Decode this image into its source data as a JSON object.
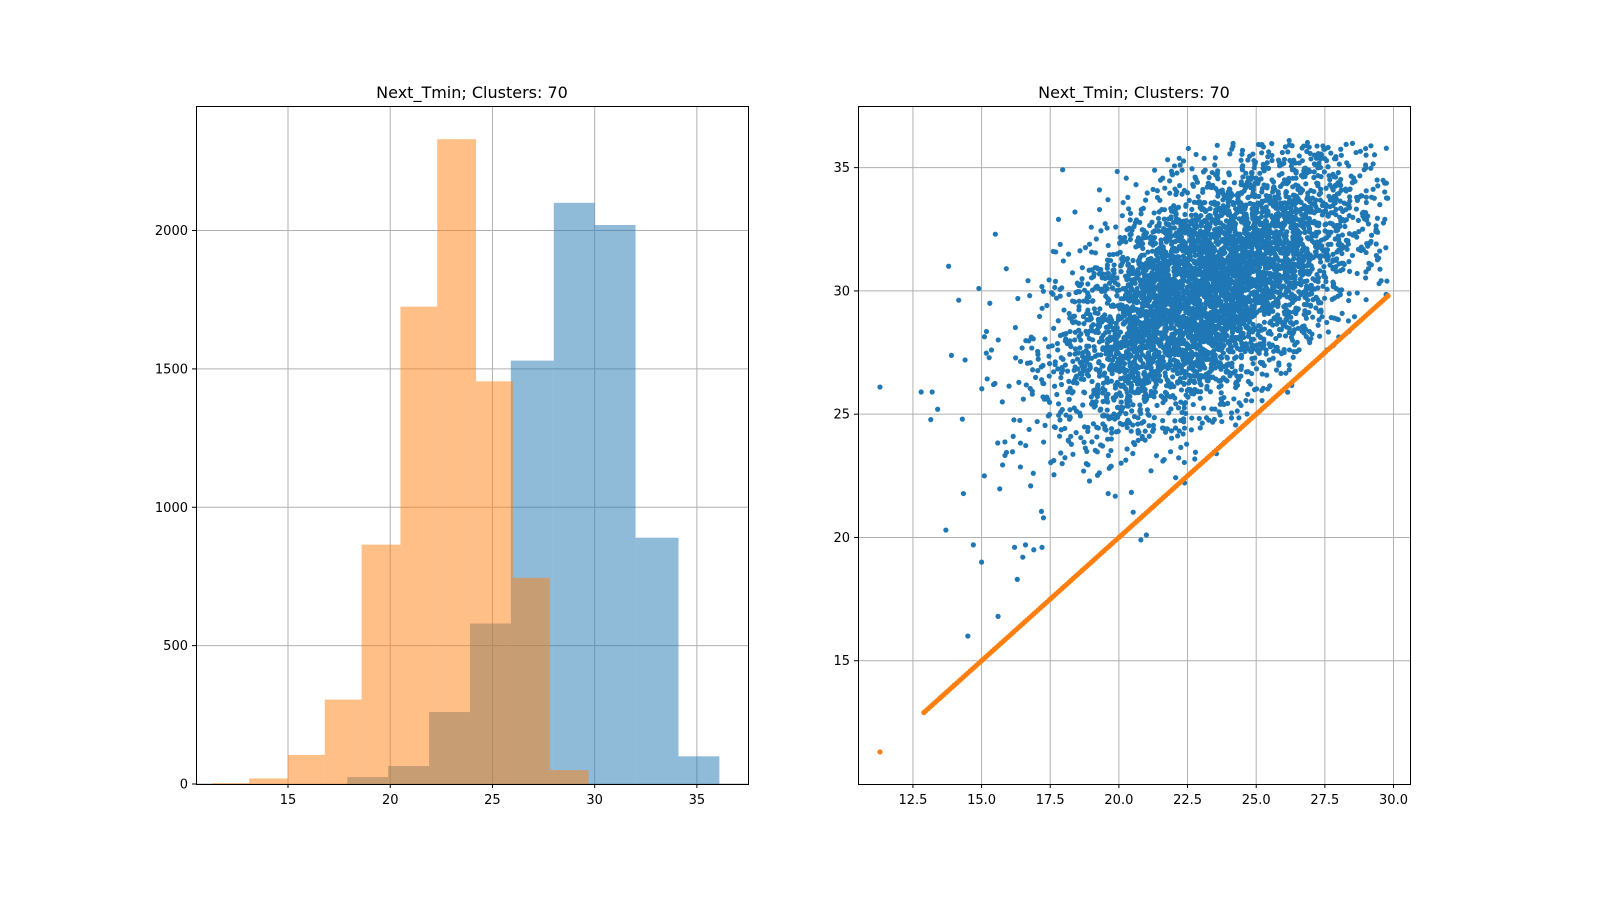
{
  "chart_data": [
    {
      "type": "bar",
      "subtype": "overlapping-histogram",
      "title": "Next_Tmin; Clusters: 70",
      "xlabel": "",
      "ylabel": "",
      "xlim": [
        10.5,
        37.5
      ],
      "ylim": [
        0,
        2450
      ],
      "xticks": [
        15,
        20,
        25,
        30,
        35
      ],
      "yticks": [
        0,
        500,
        1000,
        1500,
        2000
      ],
      "grid": true,
      "series": [
        {
          "color": "#1f77b4",
          "opacity": 0.5,
          "bins": [
            {
              "x0": 17.9,
              "x1": 19.9,
              "count": 25
            },
            {
              "x0": 19.9,
              "x1": 21.9,
              "count": 65
            },
            {
              "x0": 21.9,
              "x1": 23.9,
              "count": 260
            },
            {
              "x0": 23.9,
              "x1": 25.9,
              "count": 580
            },
            {
              "x0": 25.9,
              "x1": 28.0,
              "count": 1530
            },
            {
              "x0": 28.0,
              "x1": 30.0,
              "count": 2100
            },
            {
              "x0": 30.0,
              "x1": 32.0,
              "count": 2020
            },
            {
              "x0": 32.0,
              "x1": 34.1,
              "count": 890
            },
            {
              "x0": 34.1,
              "x1": 36.1,
              "count": 100
            }
          ]
        },
        {
          "color": "#ff7f0e",
          "opacity": 0.5,
          "bins": [
            {
              "x0": 11.3,
              "x1": 13.1,
              "count": 3
            },
            {
              "x0": 13.1,
              "x1": 15.0,
              "count": 20
            },
            {
              "x0": 15.0,
              "x1": 16.8,
              "count": 105
            },
            {
              "x0": 16.8,
              "x1": 18.6,
              "count": 305
            },
            {
              "x0": 18.6,
              "x1": 20.5,
              "count": 865
            },
            {
              "x0": 20.5,
              "x1": 22.3,
              "count": 1725
            },
            {
              "x0": 22.3,
              "x1": 24.2,
              "count": 2330
            },
            {
              "x0": 24.2,
              "x1": 26.0,
              "count": 1455
            },
            {
              "x0": 26.0,
              "x1": 27.8,
              "count": 745
            },
            {
              "x0": 27.8,
              "x1": 29.7,
              "count": 50
            }
          ]
        }
      ]
    },
    {
      "type": "scatter",
      "title": "Next_Tmin; Clusters: 70",
      "xlabel": "",
      "ylabel": "",
      "xlim": [
        10.5,
        30.6
      ],
      "ylim": [
        10.0,
        37.5
      ],
      "xticks": [
        "12.5",
        "15.0",
        "17.5",
        "20.0",
        "22.5",
        "25.0",
        "27.5",
        "30.0"
      ],
      "yticks": [
        "15",
        "20",
        "25",
        "30",
        "35"
      ],
      "grid": true,
      "series": [
        {
          "color": "#1f77b4",
          "description": "predicted vs actual, dense cloud",
          "sample_points": [
            [
              11.3,
              26.1
            ],
            [
              12.8,
              25.9
            ],
            [
              13.2,
              25.9
            ],
            [
              13.4,
              25.2
            ],
            [
              13.7,
              20.3
            ],
            [
              13.8,
              31.0
            ],
            [
              14.3,
              24.8
            ],
            [
              14.4,
              27.2
            ],
            [
              14.5,
              16.0
            ],
            [
              14.7,
              19.7
            ],
            [
              14.9,
              30.1
            ],
            [
              15.0,
              19.0
            ],
            [
              15.1,
              22.5
            ],
            [
              15.3,
              29.5
            ],
            [
              15.5,
              32.3
            ],
            [
              15.6,
              16.8
            ],
            [
              15.9,
              30.9
            ],
            [
              16.2,
              19.6
            ],
            [
              16.3,
              18.3
            ],
            [
              16.5,
              19.2
            ],
            [
              16.6,
              19.7
            ],
            [
              16.9,
              19.5
            ],
            [
              17.2,
              19.6
            ],
            [
              17.8,
              32.9
            ],
            [
              18.2,
              24.8
            ],
            [
              18.4,
              33.2
            ],
            [
              19.1,
              30.7
            ],
            [
              19.6,
              33.7
            ],
            [
              20.8,
              19.9
            ],
            [
              21.0,
              20.1
            ],
            [
              21.3,
              34.9
            ],
            [
              22.3,
              34.9
            ],
            [
              23.4,
              34.8
            ],
            [
              24.5,
              35.7
            ],
            [
              25.4,
              35.2
            ],
            [
              26.2,
              36.1
            ],
            [
              27.1,
              34.6
            ],
            [
              28.1,
              35.5
            ],
            [
              29.2,
              33.8
            ],
            [
              29.5,
              33.5
            ]
          ]
        },
        {
          "color": "#ff7f0e",
          "description": "identity line y = x",
          "sample_points": [
            [
              11.3,
              11.3
            ],
            [
              12.9,
              12.9
            ],
            [
              13.5,
              13.5
            ],
            [
              14.0,
              14.0
            ],
            [
              15.0,
              15.0
            ],
            [
              17.5,
              17.5
            ],
            [
              20.0,
              20.0
            ],
            [
              22.5,
              22.5
            ],
            [
              25.0,
              25.0
            ],
            [
              27.5,
              27.5
            ],
            [
              29.8,
              29.8
            ]
          ]
        }
      ]
    }
  ]
}
